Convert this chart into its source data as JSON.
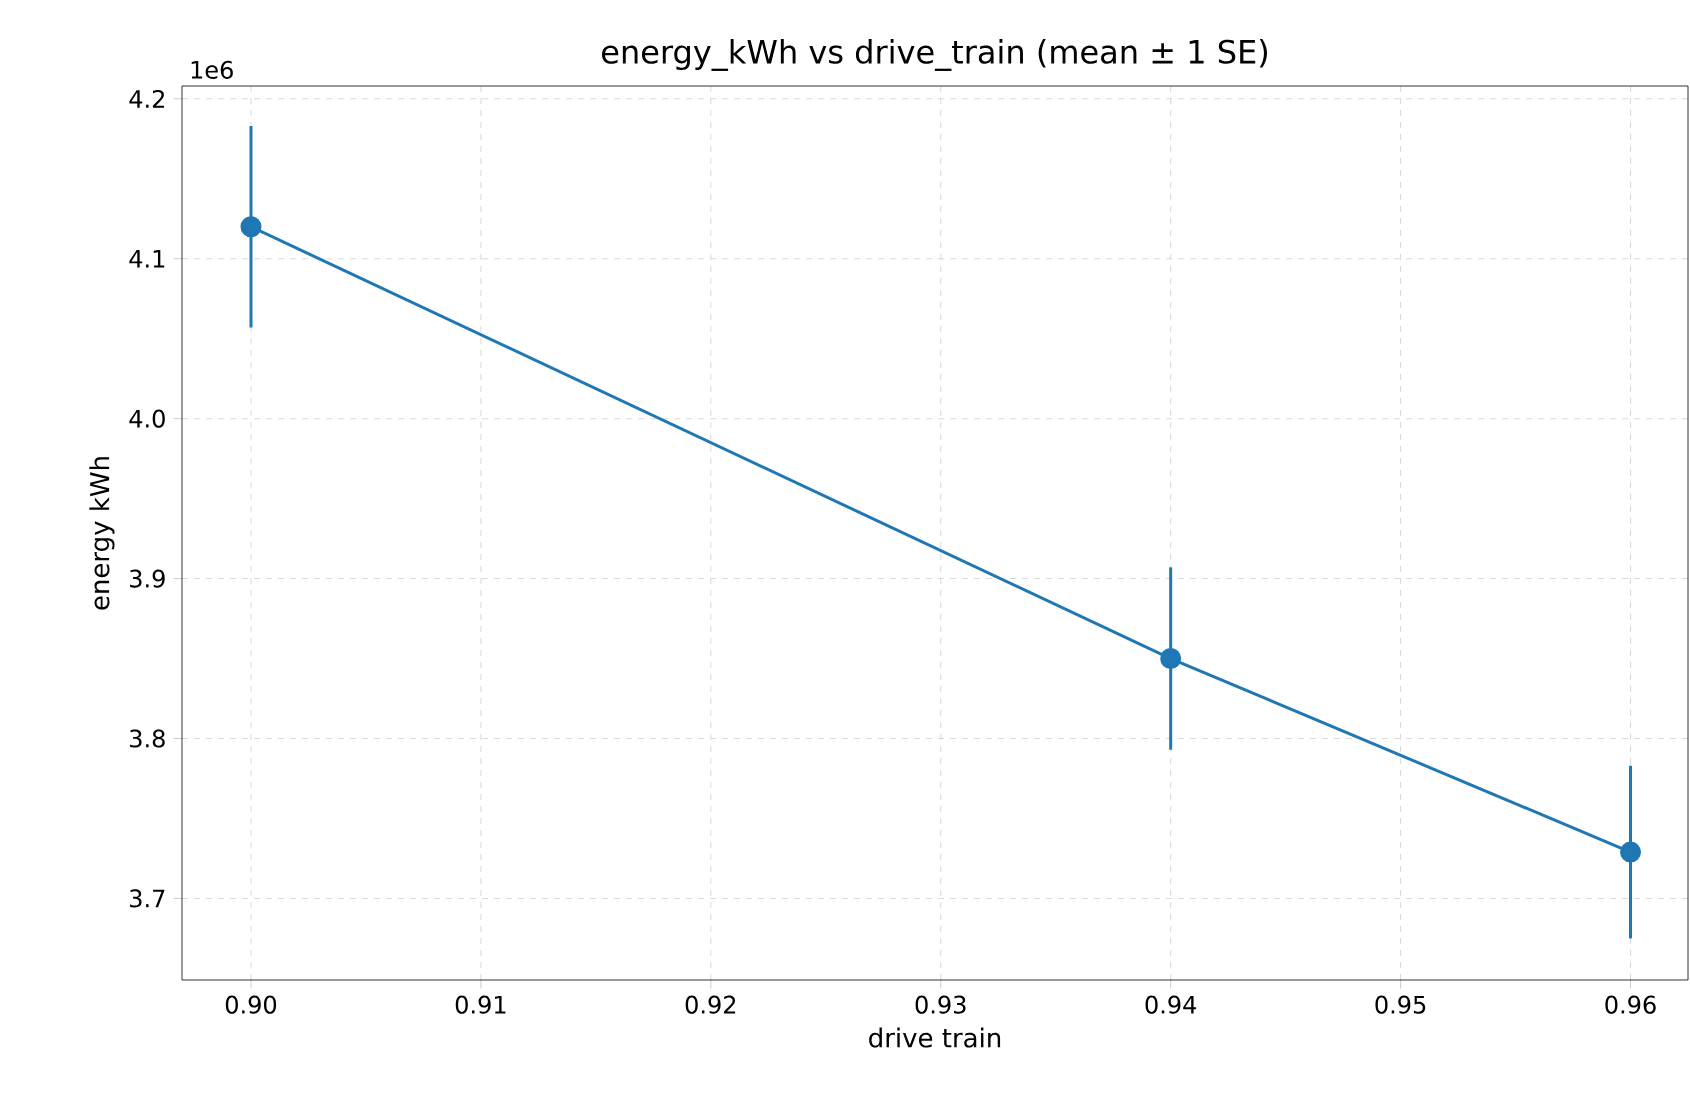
{
  "chart_data": {
    "type": "line",
    "title": "energy_kWh vs drive_train (mean ± 1 SE)",
    "xlabel": "drive train",
    "ylabel": "energy kWh",
    "annotations": [
      "1e6"
    ],
    "x": [
      0.9,
      0.94,
      0.96
    ],
    "series": [
      {
        "color": "#1f77b4",
        "values": [
          4.12,
          3.85,
          3.729
        ],
        "errors": [
          0.063,
          0.057,
          0.054
        ]
      }
    ],
    "xlim": [
      0.897,
      0.9625
    ],
    "ylim": [
      3.649,
      4.208
    ],
    "xticks": [
      {
        "value": 0.9,
        "label": "0.90"
      },
      {
        "value": 0.91,
        "label": "0.91"
      },
      {
        "value": 0.92,
        "label": "0.92"
      },
      {
        "value": 0.93,
        "label": "0.93"
      },
      {
        "value": 0.94,
        "label": "0.94"
      },
      {
        "value": 0.95,
        "label": "0.95"
      },
      {
        "value": 0.96,
        "label": "0.96"
      }
    ],
    "yticks": [
      3.7,
      3.8,
      3.9,
      {
        "value": 4.0,
        "label": "4.0"
      },
      4.1,
      4.2
    ],
    "grid": true,
    "marker": "circle",
    "line_style": "solid"
  }
}
